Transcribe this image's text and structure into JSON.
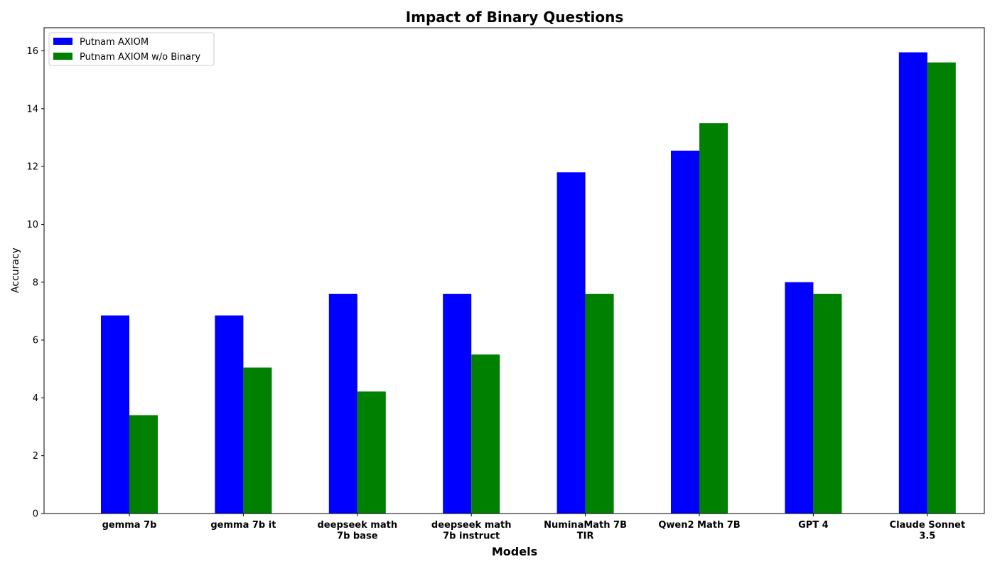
{
  "chart_data": {
    "type": "bar",
    "title": "Impact of Binary Questions",
    "xlabel": "Models",
    "ylabel": "Accuracy",
    "ylim": [
      0,
      16.8
    ],
    "yticks": [
      0,
      2,
      4,
      6,
      8,
      10,
      12,
      14,
      16
    ],
    "categories": [
      [
        "gemma 7b"
      ],
      [
        "gemma 7b it"
      ],
      [
        "deepseek math",
        "7b base"
      ],
      [
        "deepseek math",
        "7b instruct"
      ],
      [
        "NuminaMath 7B",
        "TIR"
      ],
      [
        "Qwen2 Math 7B"
      ],
      [
        "GPT 4"
      ],
      [
        "Claude Sonnet",
        "3.5"
      ]
    ],
    "series": [
      {
        "name": "Putnam AXIOM",
        "color": "#0000ff",
        "values": [
          6.85,
          6.85,
          7.6,
          7.6,
          11.8,
          12.55,
          8.0,
          15.95
        ]
      },
      {
        "name": "Putnam AXIOM w/o Binary",
        "color": "#008000",
        "values": [
          3.4,
          5.05,
          4.22,
          5.5,
          7.6,
          13.5,
          7.6,
          15.6
        ]
      }
    ],
    "legend": "top-left",
    "grid": false
  }
}
